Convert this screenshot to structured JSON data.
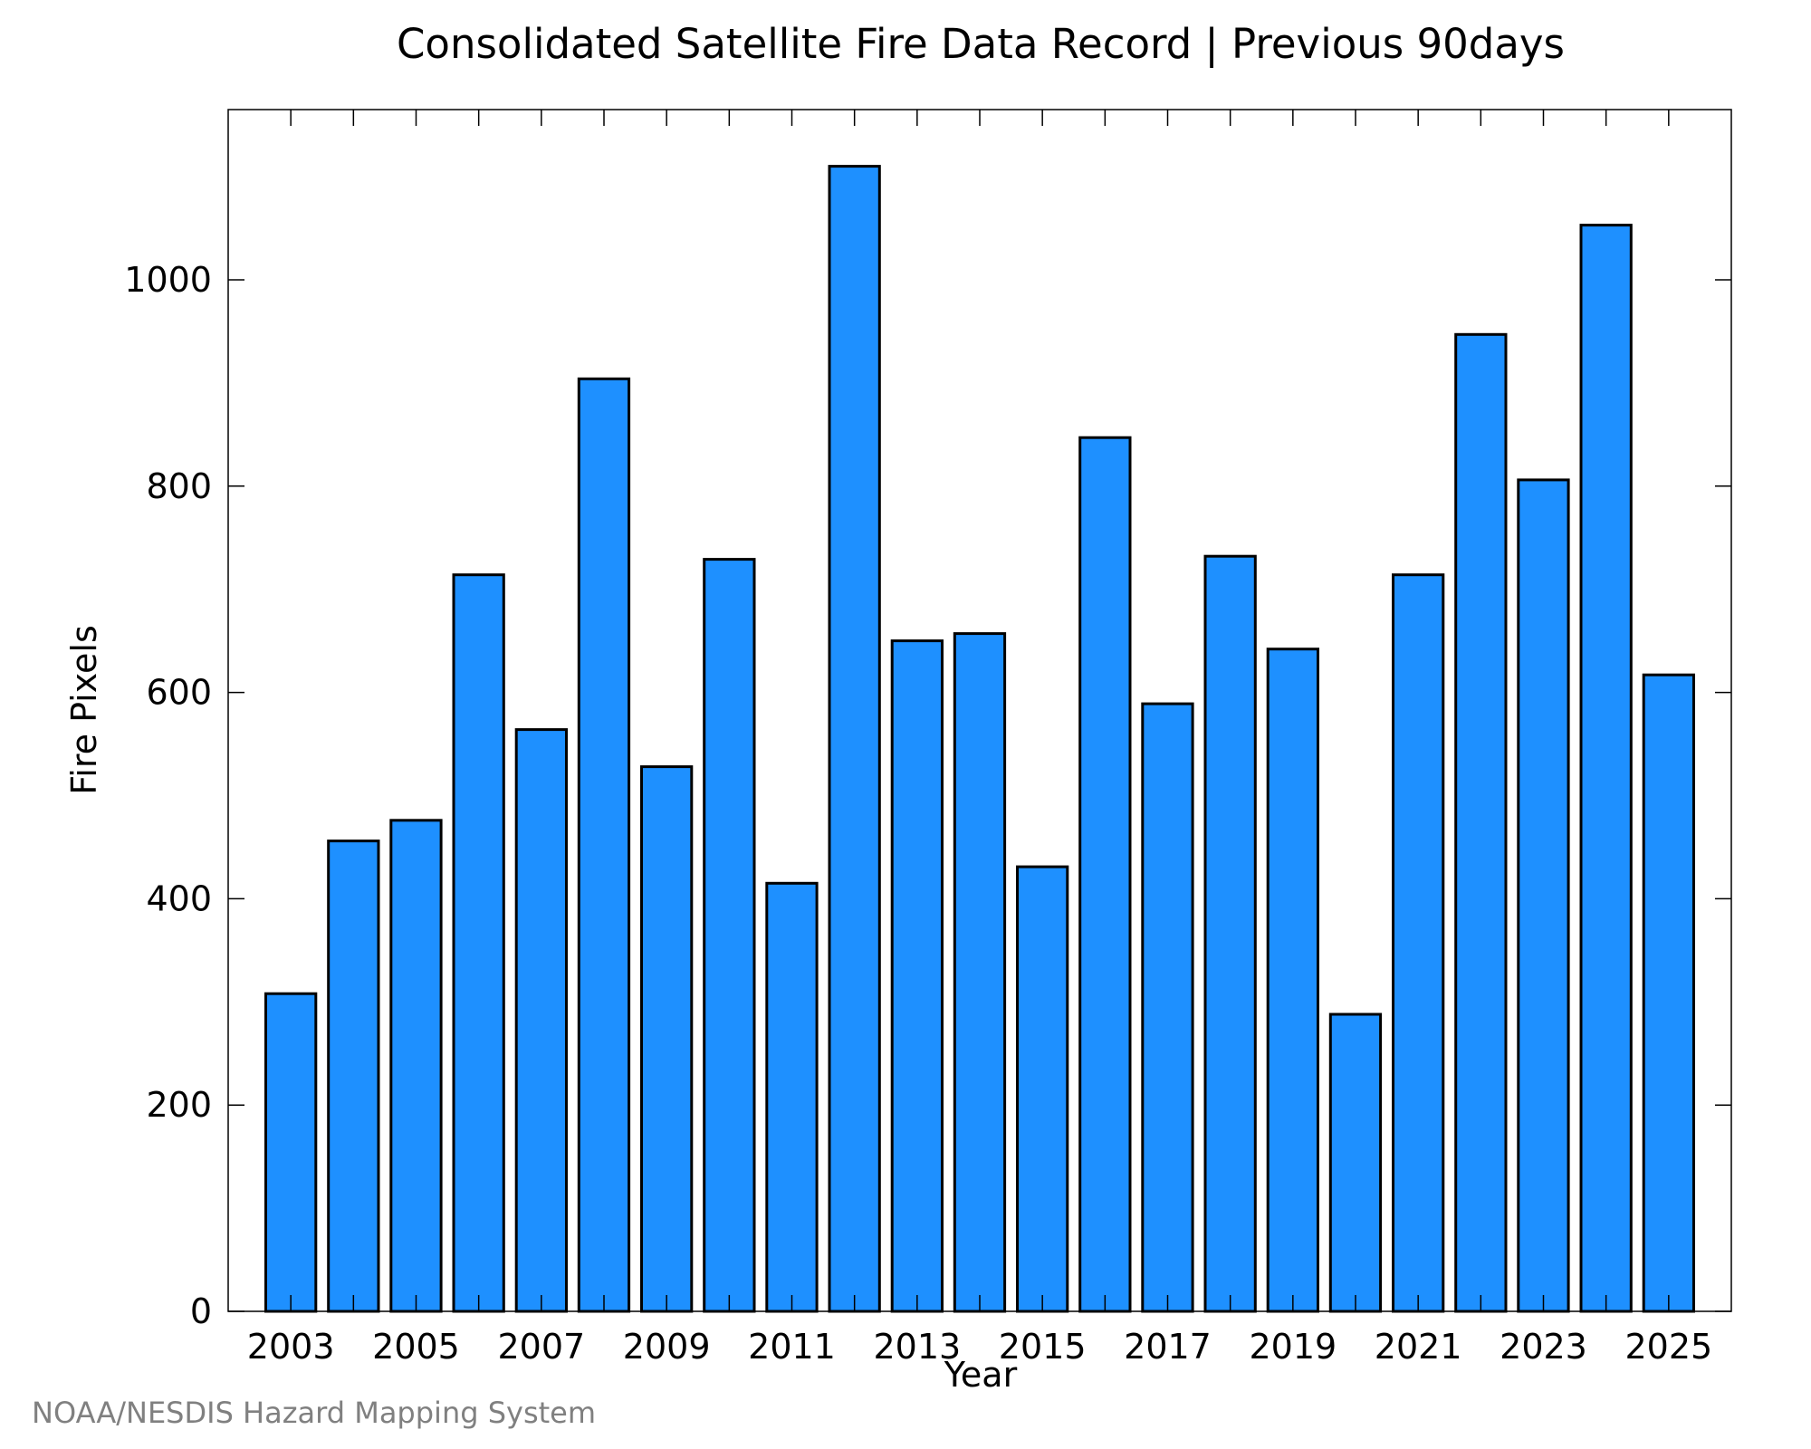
{
  "chart_data": {
    "type": "bar",
    "title": "Consolidated Satellite Fire Data Record | Previous 90days",
    "xlabel": "Year",
    "ylabel": "Fire Pixels",
    "categories": [
      "2003",
      "2004",
      "2005",
      "2006",
      "2007",
      "2008",
      "2009",
      "2010",
      "2011",
      "2012",
      "2013",
      "2014",
      "2015",
      "2016",
      "2017",
      "2018",
      "2019",
      "2020",
      "2021",
      "2022",
      "2023",
      "2024",
      "2025"
    ],
    "values": [
      308,
      456,
      476,
      714,
      564,
      904,
      528,
      729,
      415,
      1110,
      650,
      657,
      431,
      847,
      589,
      732,
      642,
      288,
      714,
      947,
      806,
      1053,
      617
    ],
    "x_tick_labels": [
      "2003",
      "2005",
      "2007",
      "2009",
      "2011",
      "2013",
      "2015",
      "2017",
      "2019",
      "2021",
      "2023",
      "2025"
    ],
    "y_ticks": [
      0,
      200,
      400,
      600,
      800,
      1000
    ],
    "y_tick_labels": [
      "0",
      "200",
      "400",
      "600",
      "800",
      "1000"
    ],
    "ylim": [
      0,
      1165
    ],
    "grid": false,
    "bar_color": "#1E90FF",
    "bar_edge_color": "#000000"
  },
  "credit": "NOAA/NESDIS Hazard Mapping System"
}
